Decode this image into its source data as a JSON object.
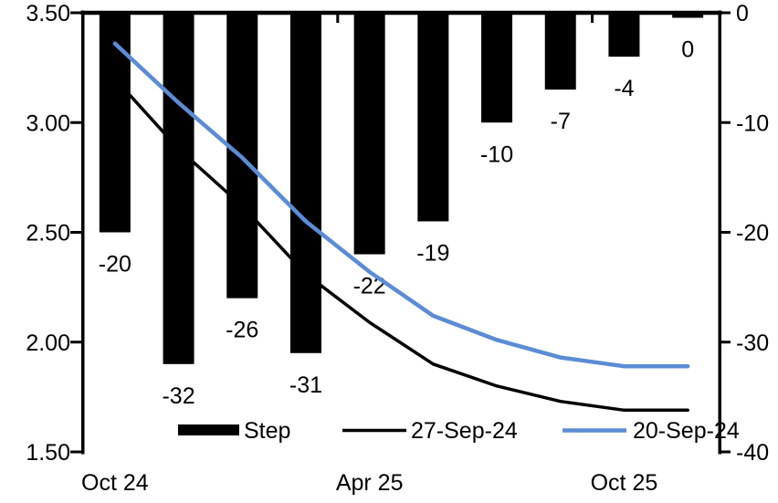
{
  "chart_data": {
    "type": "combo",
    "title": "",
    "x_axis": {
      "num_slots": 10,
      "labels": [
        "Oct 24",
        "Apr 25",
        "Oct 25"
      ],
      "label_slots": [
        0,
        4,
        8
      ],
      "tick_slots": [
        0,
        4,
        8
      ]
    },
    "left_axis": {
      "min": 1.5,
      "max": 3.5,
      "ticks": [
        "3.50",
        "3.00",
        "2.50",
        "2.00",
        "1.50"
      ],
      "tick_values": [
        3.5,
        3.0,
        2.5,
        2.0,
        1.5
      ]
    },
    "right_axis": {
      "min": -40,
      "max": 0,
      "ticks": [
        "0",
        "-10",
        "-20",
        "-30",
        "-40"
      ],
      "tick_values": [
        0,
        -10,
        -20,
        -30,
        -40
      ]
    },
    "series": [
      {
        "name": "Step",
        "type": "bar",
        "axis": "right",
        "color": "#000000",
        "values": [
          -20,
          -32,
          -26,
          -31,
          -22,
          -19,
          -10,
          -7,
          -4,
          0
        ],
        "data_labels": [
          "-20",
          "-32",
          "-26",
          "-31",
          "-22",
          "-19",
          "-10",
          "-7",
          "-4",
          "0"
        ]
      },
      {
        "name": "27-Sep-24",
        "type": "line",
        "axis": "left",
        "color": "#000000",
        "values": [
          3.2,
          2.88,
          2.62,
          2.31,
          2.09,
          1.9,
          1.8,
          1.73,
          1.69,
          1.69
        ]
      },
      {
        "name": "20-Sep-24",
        "type": "line",
        "axis": "left",
        "color": "#5B8CD5",
        "values": [
          3.36,
          3.09,
          2.84,
          2.55,
          2.32,
          2.12,
          2.01,
          1.93,
          1.89,
          1.89
        ]
      }
    ],
    "legend": {
      "position": "bottom",
      "entries": [
        "Step",
        "27-Sep-24",
        "20-Sep-24"
      ]
    }
  }
}
